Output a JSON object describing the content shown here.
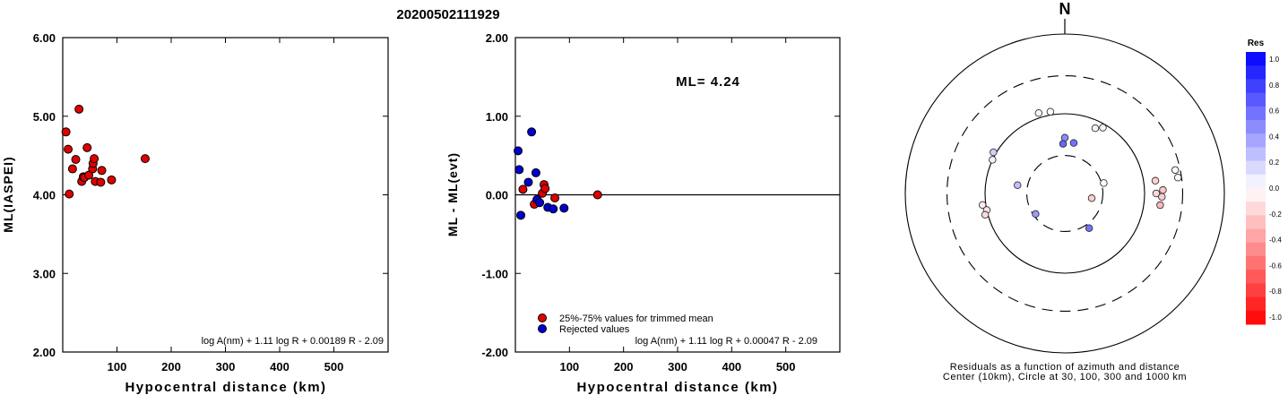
{
  "title": "20200502111929",
  "chart_data": [
    {
      "type": "scatter",
      "ylabel": "ML(IASPEI)",
      "xlabel": "Hypocentral distance (km)",
      "xlim": [
        0,
        600
      ],
      "ylim": [
        2.0,
        6.0
      ],
      "xticks": [
        100,
        200,
        300,
        400,
        500
      ],
      "yticks": [
        "2.00",
        "3.00",
        "4.00",
        "5.00",
        "6.00"
      ],
      "formula": "log A(nm) + 1.11 log R + 0.00189 R - 2.09",
      "series": [
        {
          "color": "#e00000",
          "x": [
            6,
            10,
            12,
            18,
            24,
            30,
            35,
            38,
            40,
            45,
            48,
            55,
            56,
            58,
            60,
            70,
            72,
            90,
            152
          ],
          "y": [
            4.8,
            4.58,
            4.01,
            4.33,
            4.45,
            5.09,
            4.17,
            4.23,
            4.22,
            4.6,
            4.25,
            4.33,
            4.4,
            4.46,
            4.17,
            4.16,
            4.31,
            4.19,
            4.46
          ]
        }
      ]
    },
    {
      "type": "scatter",
      "ylabel": "ML - ML(evt)",
      "xlabel": "Hypocentral distance (km)",
      "xlim": [
        0,
        600
      ],
      "ylim": [
        -2.0,
        2.0
      ],
      "xticks": [
        100,
        200,
        300,
        400,
        500
      ],
      "yticks": [
        "-2.00",
        "-1.00",
        "0.00",
        "1.00",
        "2.00"
      ],
      "annotation": "ML= 4.24",
      "formula": "log A(nm) + 1.11 log R + 0.00047 R - 2.09",
      "legend": [
        "25%-75% values for trimmed mean",
        "Rejected values"
      ],
      "series": [
        {
          "name": "25%-75% values for trimmed mean",
          "color": "#e00000",
          "x": [
            14,
            35,
            50,
            53,
            55,
            73,
            152
          ],
          "y": [
            0.07,
            -0.12,
            0.02,
            0.13,
            0.08,
            -0.04,
            0.0
          ]
        },
        {
          "name": "Rejected values",
          "color": "#0000d0",
          "x": [
            5,
            7,
            10,
            24,
            30,
            38,
            40,
            45,
            60,
            70,
            90
          ],
          "y": [
            0.56,
            0.32,
            -0.26,
            0.16,
            0.8,
            0.28,
            -0.06,
            -0.1,
            -0.16,
            -0.18,
            -0.17
          ]
        }
      ]
    },
    {
      "type": "polar-scatter",
      "north_label": "N",
      "caption_line1": "Residuals as a function of azimuth and distance",
      "caption_line2": "Center (10km), Circle at 30, 100, 300 and 1000 km",
      "colorbar_title": "Res",
      "colorbar_ticks": [
        "1.0",
        "0.8",
        "0.6",
        "0.4",
        "0.2",
        "0.0",
        "-0.2",
        "-0.4",
        "-0.6",
        "-0.8",
        "-1.0"
      ],
      "rings": [
        {
          "label": 30,
          "style": "dashed"
        },
        {
          "label": 100,
          "style": "solid"
        },
        {
          "label": 300,
          "style": "dashed"
        },
        {
          "label": 1000,
          "style": "solid"
        }
      ],
      "points": [
        {
          "azimuth": 350,
          "distance": 110,
          "res": 0.02
        },
        {
          "azimuth": 342,
          "distance": 115,
          "res": 0.04
        },
        {
          "azimuth": 300,
          "distance": 108,
          "res": 0.18
        },
        {
          "azimuth": 295,
          "distance": 100,
          "res": 0.06
        },
        {
          "azimuth": 262,
          "distance": 110,
          "res": -0.08
        },
        {
          "azimuth": 258,
          "distance": 100,
          "res": -0.1
        },
        {
          "azimuth": 255,
          "distance": 108,
          "res": -0.15
        },
        {
          "azimuth": 280,
          "distance": 40,
          "res": 0.25
        },
        {
          "azimuth": 0,
          "distance": 50,
          "res": 0.45
        },
        {
          "azimuth": 358,
          "distance": 42,
          "res": 0.6
        },
        {
          "azimuth": 10,
          "distance": 44,
          "res": 0.55
        },
        {
          "azimuth": 235,
          "distance": 28,
          "res": 0.4
        },
        {
          "azimuth": 145,
          "distance": 34,
          "res": 0.55
        },
        {
          "azimuth": 100,
          "distance": 22,
          "res": -0.2
        },
        {
          "azimuth": 75,
          "distance": 32,
          "res": 0.0
        },
        {
          "azimuth": 25,
          "distance": 80,
          "res": 0.05
        },
        {
          "azimuth": 30,
          "distance": 90,
          "res": 0.04
        },
        {
          "azimuth": 82,
          "distance": 140,
          "res": -0.18
        },
        {
          "azimuth": 90,
          "distance": 140,
          "res": -0.15
        },
        {
          "azimuth": 88,
          "distance": 170,
          "res": -0.22
        },
        {
          "azimuth": 92,
          "distance": 165,
          "res": -0.2
        },
        {
          "azimuth": 97,
          "distance": 160,
          "res": -0.28
        },
        {
          "azimuth": 78,
          "distance": 260,
          "res": 0.0
        },
        {
          "azimuth": 82,
          "distance": 270,
          "res": 0.03
        }
      ]
    }
  ]
}
